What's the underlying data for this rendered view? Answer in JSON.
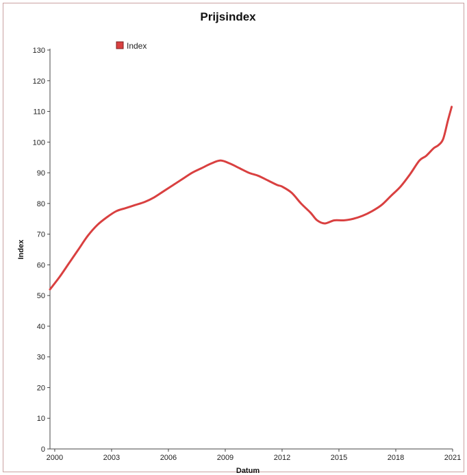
{
  "chart_data": {
    "type": "line",
    "title": "Prijsindex",
    "xlabel": "Datum",
    "ylabel": "Index",
    "xlim": [
      1999.75,
      2021.0
    ],
    "ylim": [
      0,
      130
    ],
    "xticks": [
      2000,
      2003,
      2006,
      2009,
      2012,
      2015,
      2018,
      2021
    ],
    "xtick_labels": [
      "2000",
      "2003",
      "2006",
      "2009",
      "2012",
      "2015",
      "2018",
      "2021"
    ],
    "yticks": [
      0,
      10,
      20,
      30,
      40,
      50,
      60,
      70,
      80,
      90,
      100,
      110,
      120,
      130
    ],
    "ytick_labels": [
      "0",
      "10",
      "20",
      "30",
      "40",
      "50",
      "60",
      "70",
      "80",
      "90",
      "100",
      "110",
      "120",
      "130"
    ],
    "legend_position": "top-left",
    "grid": false,
    "colors": {
      "series": "#d94040",
      "axis": "#444444"
    },
    "series": [
      {
        "name": "Index",
        "x": [
          1999.75,
          2000.25,
          2000.75,
          2001.25,
          2001.75,
          2002.25,
          2002.75,
          2003.25,
          2003.75,
          2004.25,
          2004.75,
          2005.25,
          2005.75,
          2006.25,
          2006.75,
          2007.25,
          2007.75,
          2008.25,
          2008.75,
          2009.25,
          2009.75,
          2010.25,
          2010.75,
          2011.25,
          2011.75,
          2012.0,
          2012.5,
          2013.0,
          2013.5,
          2013.85,
          2014.25,
          2014.75,
          2015.25,
          2015.75,
          2016.25,
          2016.75,
          2017.25,
          2017.75,
          2018.25,
          2018.75,
          2019.25,
          2019.6,
          2020.0,
          2020.25,
          2020.5,
          2020.75,
          2020.95
        ],
        "values": [
          52,
          56,
          60.5,
          65,
          69.5,
          73,
          75.5,
          77.5,
          78.5,
          79.5,
          80.5,
          82,
          84,
          86,
          88,
          90,
          91.5,
          93,
          94,
          93,
          91.5,
          90,
          89,
          87.5,
          86,
          85.5,
          83.5,
          80,
          77,
          74.5,
          73.5,
          74.5,
          74.5,
          75,
          76,
          77.5,
          79.5,
          82.5,
          85.5,
          89.5,
          94,
          95.5,
          98,
          99,
          101,
          107,
          111.5
        ]
      }
    ]
  }
}
